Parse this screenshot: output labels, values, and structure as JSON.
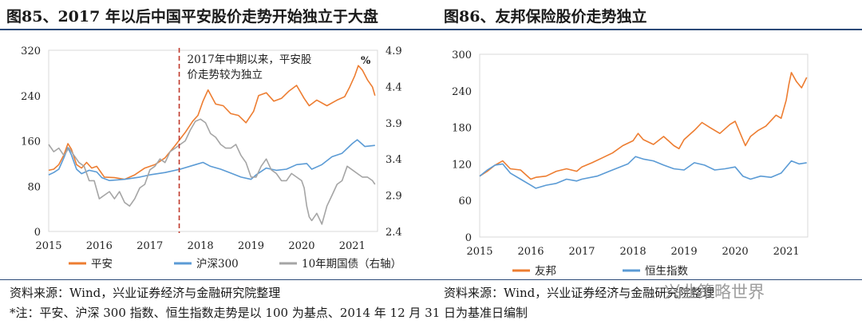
{
  "titles": {
    "left": "图85、2017 年以后中国平安股价走势开始独立于大盘",
    "right": "图86、友邦保险股价走势独立"
  },
  "source": {
    "left": "资料来源：Wind，兴业证券经济与金融研究院整理",
    "right": "资料来源：Wind，兴业证券经济与金融研究院整理"
  },
  "note": "*注：平安、沪深 300 指数、恒生指数走势是以 100 为基点、2014 年 12 月 31 日为基准日编制",
  "watermark": "兴业策略世界",
  "colors": {
    "orange": "#ED7D31",
    "blue": "#5B9BD5",
    "gray": "#A5A5A5",
    "dash": "#C0392B"
  },
  "chart_data": [
    {
      "type": "line",
      "x_ticks": [
        "2015",
        "2016",
        "2017",
        "2018",
        "2019",
        "2020",
        "2021"
      ],
      "x_range": [
        2015.0,
        2021.5
      ],
      "ylim": [
        0,
        320
      ],
      "y_ticks": [
        0,
        80,
        160,
        240,
        320
      ],
      "y2lim": [
        2.4,
        4.9
      ],
      "y2_ticks": [
        2.4,
        2.9,
        3.4,
        3.9,
        4.4,
        4.9
      ],
      "y2_unit": "%",
      "annotation": {
        "text_line1": "2017年中期以来，平安股",
        "text_line2": "价走势较为独立",
        "x": 2017.58
      },
      "legend_position": "bottom",
      "grid": false,
      "series": [
        {
          "name": "平安",
          "axis": "left",
          "color": "#ED7D31",
          "x": [
            2015.0,
            2015.1,
            2015.2,
            2015.3,
            2015.38,
            2015.45,
            2015.55,
            2015.65,
            2015.75,
            2015.85,
            2015.95,
            2016.1,
            2016.3,
            2016.5,
            2016.7,
            2016.9,
            2017.1,
            2017.3,
            2017.5,
            2017.7,
            2017.85,
            2017.95,
            2018.05,
            2018.15,
            2018.3,
            2018.45,
            2018.6,
            2018.75,
            2018.9,
            2019.05,
            2019.15,
            2019.3,
            2019.45,
            2019.6,
            2019.75,
            2019.9,
            2020.05,
            2020.15,
            2020.3,
            2020.5,
            2020.7,
            2020.85,
            2020.95,
            2021.05,
            2021.12,
            2021.2,
            2021.3,
            2021.4,
            2021.45
          ],
          "y": [
            108,
            110,
            118,
            135,
            155,
            145,
            118,
            112,
            122,
            112,
            115,
            96,
            95,
            92,
            100,
            112,
            118,
            130,
            152,
            175,
            195,
            205,
            230,
            250,
            225,
            222,
            208,
            205,
            192,
            212,
            240,
            245,
            230,
            235,
            248,
            258,
            235,
            222,
            232,
            222,
            232,
            238,
            255,
            275,
            293,
            285,
            268,
            255,
            240
          ]
        },
        {
          "name": "沪深300",
          "axis": "left",
          "color": "#5B9BD5",
          "x": [
            2015.0,
            2015.1,
            2015.2,
            2015.3,
            2015.38,
            2015.45,
            2015.55,
            2015.65,
            2015.8,
            2015.95,
            2016.05,
            2016.2,
            2016.5,
            2016.8,
            2017.0,
            2017.3,
            2017.6,
            2017.9,
            2018.05,
            2018.2,
            2018.4,
            2018.6,
            2018.8,
            2019.0,
            2019.1,
            2019.3,
            2019.5,
            2019.7,
            2019.9,
            2020.1,
            2020.2,
            2020.4,
            2020.6,
            2020.8,
            2021.0,
            2021.1,
            2021.25,
            2021.45
          ],
          "y": [
            100,
            104,
            110,
            130,
            148,
            135,
            110,
            102,
            108,
            105,
            95,
            90,
            92,
            96,
            100,
            104,
            110,
            118,
            122,
            115,
            110,
            103,
            96,
            92,
            100,
            112,
            108,
            110,
            118,
            120,
            110,
            118,
            132,
            138,
            155,
            162,
            150,
            152
          ]
        },
        {
          "name": "10年期国债（右轴）",
          "axis": "right",
          "color": "#A5A5A5",
          "x": [
            2015.0,
            2015.1,
            2015.2,
            2015.3,
            2015.4,
            2015.5,
            2015.6,
            2015.7,
            2015.8,
            2015.9,
            2016.0,
            2016.1,
            2016.2,
            2016.3,
            2016.4,
            2016.5,
            2016.6,
            2016.7,
            2016.8,
            2016.9,
            2017.0,
            2017.1,
            2017.2,
            2017.3,
            2017.4,
            2017.5,
            2017.6,
            2017.7,
            2017.8,
            2017.9,
            2018.0,
            2018.1,
            2018.2,
            2018.3,
            2018.4,
            2018.5,
            2018.6,
            2018.7,
            2018.8,
            2018.9,
            2019.0,
            2019.1,
            2019.2,
            2019.3,
            2019.4,
            2019.5,
            2019.6,
            2019.7,
            2019.8,
            2019.9,
            2020.0,
            2020.05,
            2020.1,
            2020.15,
            2020.2,
            2020.3,
            2020.4,
            2020.5,
            2020.6,
            2020.7,
            2020.8,
            2020.9,
            2021.0,
            2021.1,
            2021.2,
            2021.3,
            2021.4,
            2021.45
          ],
          "y": [
            3.6,
            3.5,
            3.55,
            3.45,
            3.55,
            3.45,
            3.35,
            3.3,
            3.1,
            3.1,
            2.85,
            2.9,
            2.95,
            2.85,
            2.95,
            2.8,
            2.75,
            2.85,
            3.0,
            3.05,
            3.25,
            3.3,
            3.4,
            3.35,
            3.5,
            3.55,
            3.6,
            3.65,
            3.8,
            3.92,
            3.95,
            3.9,
            3.75,
            3.7,
            3.6,
            3.55,
            3.55,
            3.6,
            3.45,
            3.35,
            3.15,
            3.15,
            3.3,
            3.4,
            3.25,
            3.2,
            3.1,
            3.1,
            3.2,
            3.15,
            3.1,
            3.0,
            2.75,
            2.6,
            2.55,
            2.65,
            2.5,
            2.75,
            2.9,
            3.05,
            3.1,
            3.3,
            3.25,
            3.2,
            3.15,
            3.15,
            3.1,
            3.05
          ]
        }
      ]
    },
    {
      "type": "line",
      "x_ticks": [
        "2015",
        "2016",
        "2017",
        "2018",
        "2019",
        "2020",
        "2021"
      ],
      "x_range": [
        2015.0,
        2021.42
      ],
      "ylim": [
        0,
        300
      ],
      "y_ticks": [
        0,
        60,
        120,
        180,
        240,
        300
      ],
      "legend_position": "bottom",
      "grid": false,
      "series": [
        {
          "name": "友邦",
          "axis": "left",
          "color": "#ED7D31",
          "x": [
            2015.0,
            2015.15,
            2015.3,
            2015.45,
            2015.6,
            2015.8,
            2016.0,
            2016.1,
            2016.3,
            2016.5,
            2016.7,
            2016.9,
            2017.0,
            2017.2,
            2017.4,
            2017.6,
            2017.8,
            2018.0,
            2018.1,
            2018.2,
            2018.4,
            2018.6,
            2018.8,
            2018.9,
            2019.0,
            2019.2,
            2019.35,
            2019.5,
            2019.7,
            2019.9,
            2020.0,
            2020.1,
            2020.2,
            2020.3,
            2020.45,
            2020.6,
            2020.8,
            2020.9,
            2021.0,
            2021.05,
            2021.1,
            2021.2,
            2021.3,
            2021.4
          ],
          "y": [
            100,
            108,
            118,
            125,
            112,
            110,
            95,
            98,
            100,
            108,
            112,
            108,
            115,
            122,
            130,
            138,
            150,
            158,
            170,
            160,
            152,
            165,
            150,
            145,
            160,
            175,
            188,
            180,
            170,
            185,
            190,
            170,
            150,
            165,
            175,
            182,
            200,
            195,
            225,
            250,
            270,
            255,
            245,
            262
          ]
        },
        {
          "name": "恒生指数",
          "axis": "left",
          "color": "#5B9BD5",
          "x": [
            2015.0,
            2015.15,
            2015.3,
            2015.45,
            2015.6,
            2015.8,
            2016.0,
            2016.1,
            2016.3,
            2016.5,
            2016.7,
            2016.9,
            2017.0,
            2017.3,
            2017.6,
            2017.9,
            2018.05,
            2018.2,
            2018.4,
            2018.6,
            2018.8,
            2019.0,
            2019.2,
            2019.4,
            2019.6,
            2019.8,
            2020.0,
            2020.15,
            2020.3,
            2020.5,
            2020.7,
            2020.9,
            2021.0,
            2021.1,
            2021.25,
            2021.4
          ],
          "y": [
            100,
            110,
            118,
            120,
            105,
            95,
            85,
            80,
            85,
            88,
            95,
            92,
            95,
            100,
            110,
            120,
            132,
            128,
            125,
            118,
            112,
            110,
            122,
            118,
            110,
            112,
            115,
            100,
            95,
            100,
            98,
            105,
            115,
            125,
            120,
            122
          ]
        }
      ]
    }
  ]
}
